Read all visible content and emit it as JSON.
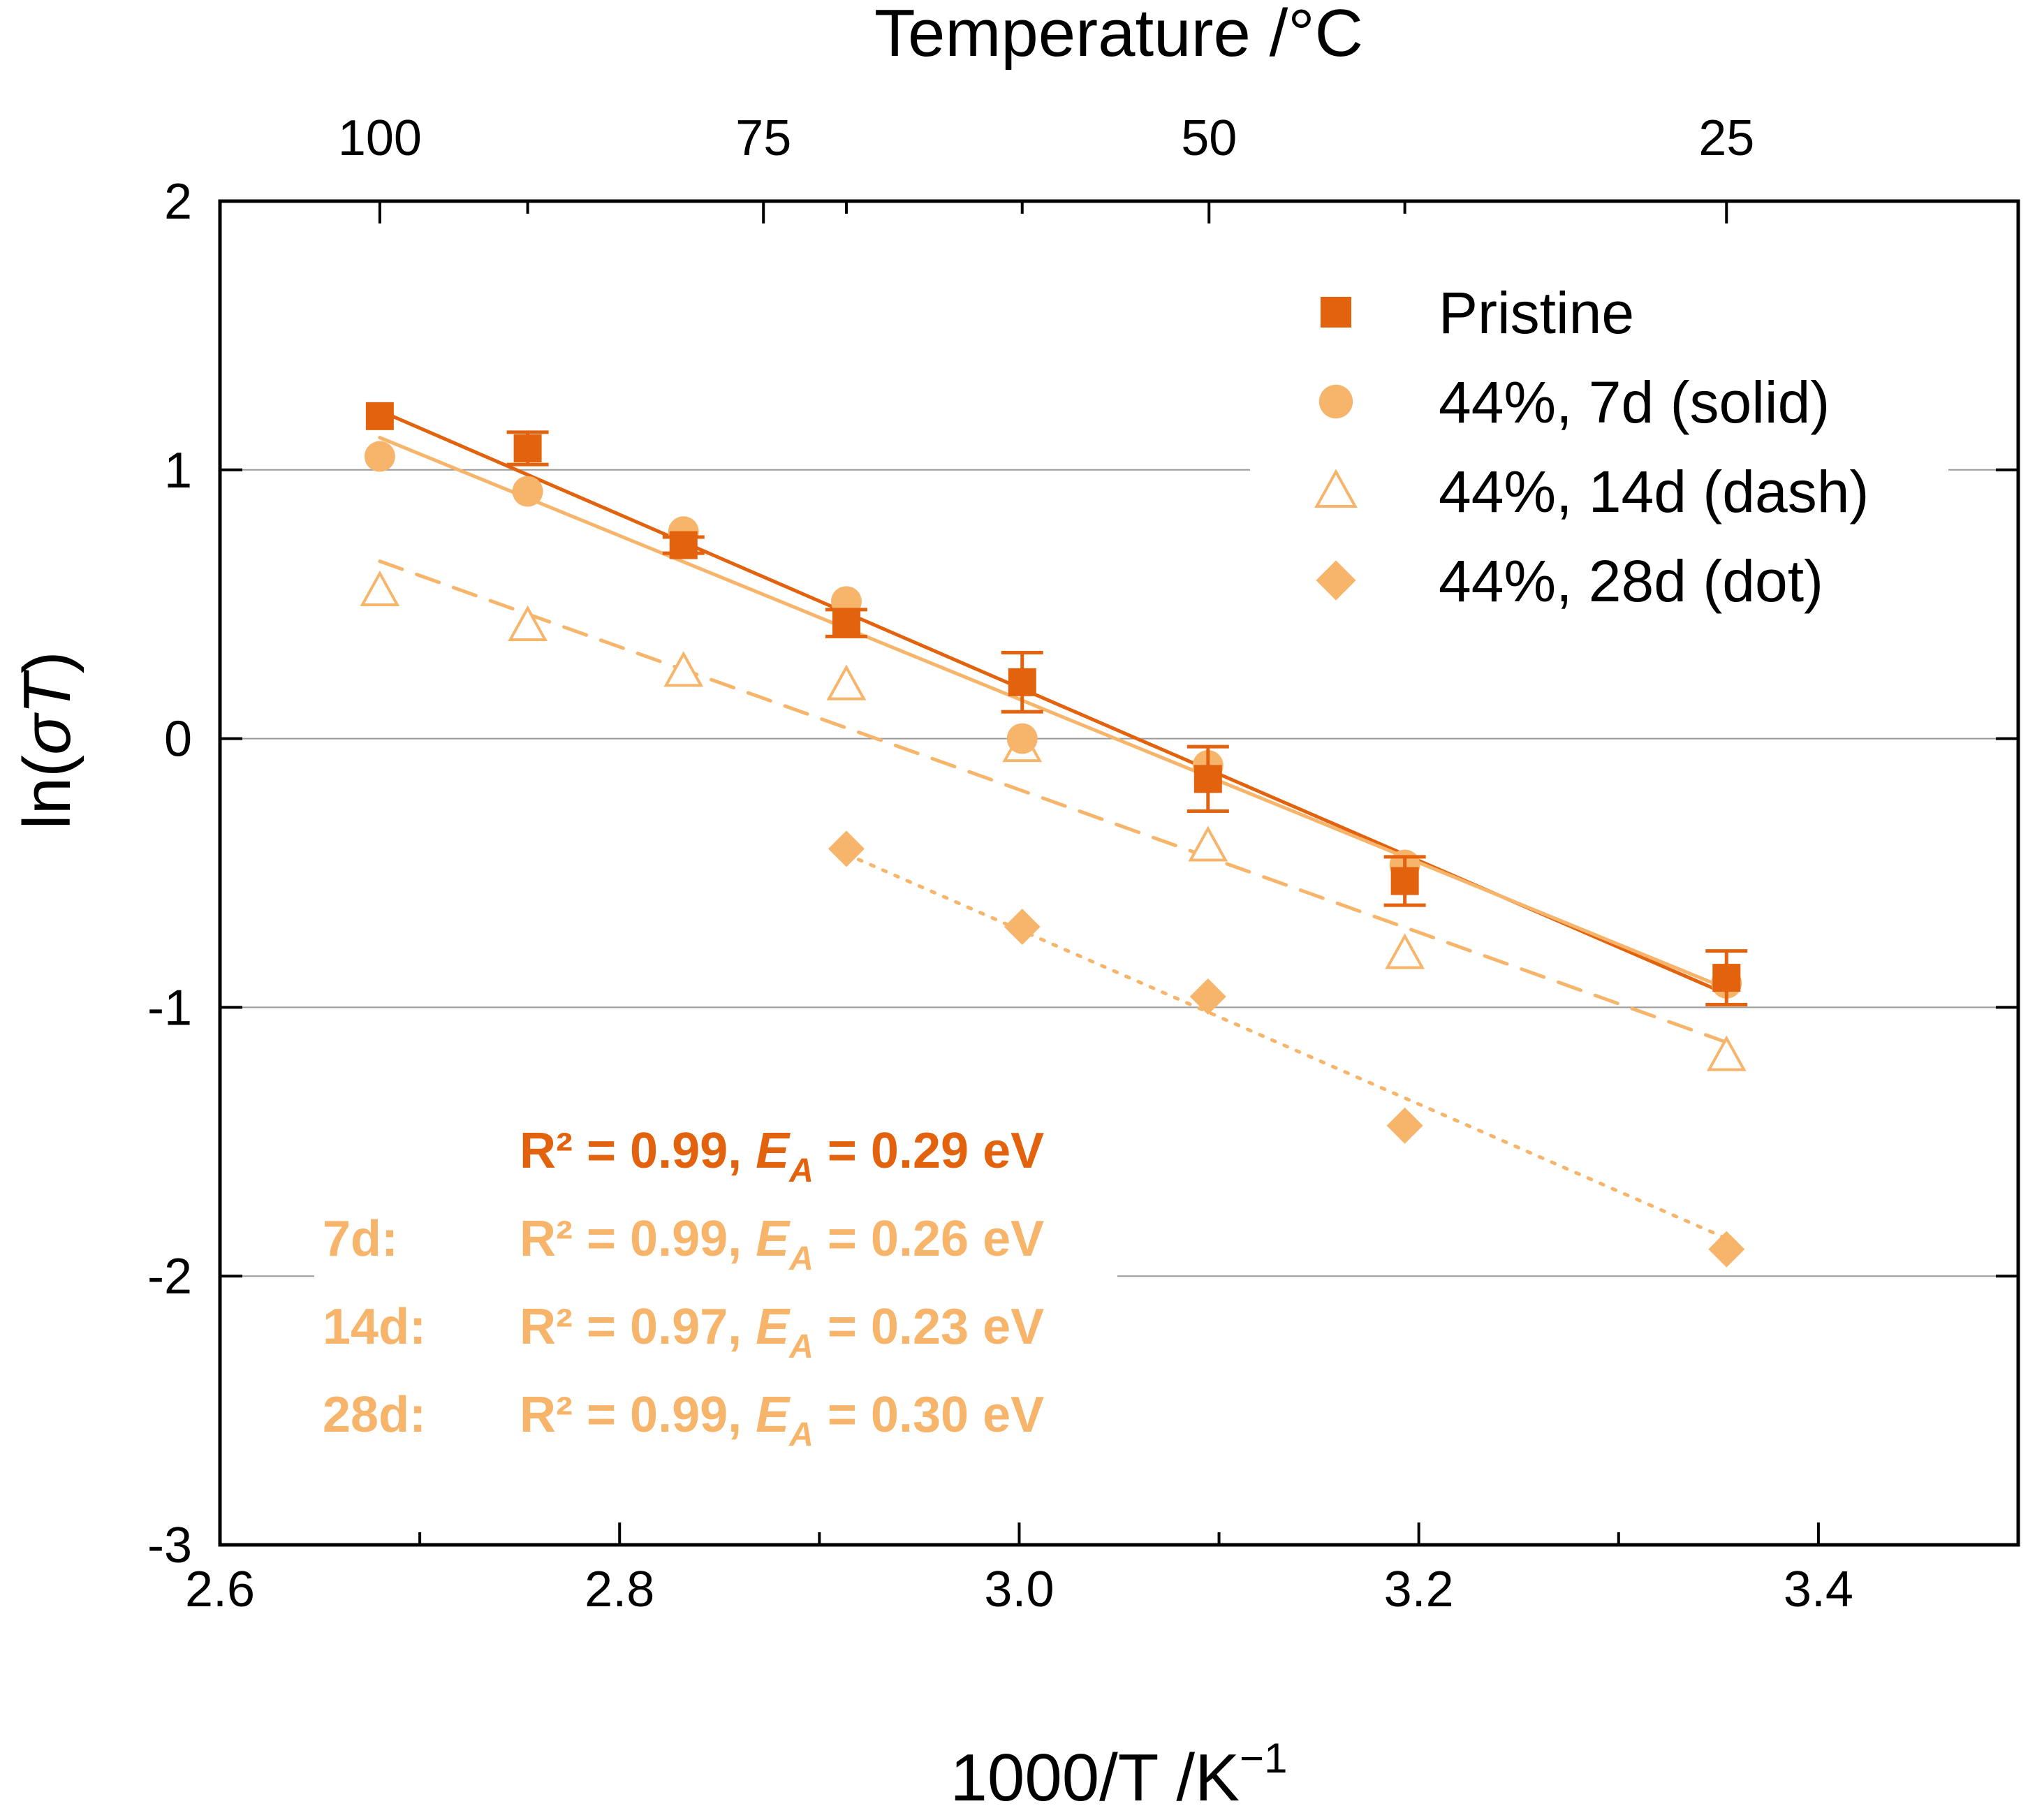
{
  "colors": {
    "pristine": "#e2620d",
    "aged": "#f7b56b",
    "grid": "#9a9a9a",
    "axis": "#000000"
  },
  "chart_data": {
    "type": "scatter",
    "xlabel_main": "1000/T /K",
    "xlabel_sup": "−1",
    "ylabel_pre": "ln(",
    "ylabel_sigma": "σ",
    "ylabel_T": "T",
    "ylabel_post": ")",
    "top_axis_label": "Temperature /°C",
    "xlim": [
      2.6,
      3.5
    ],
    "ylim": [
      -3,
      2
    ],
    "x_ticks": [
      {
        "value": 2.6,
        "label": "2.6"
      },
      {
        "value": 2.8,
        "label": "2.8"
      },
      {
        "value": 3.0,
        "label": "3.0"
      },
      {
        "value": 3.2,
        "label": "3.2"
      },
      {
        "value": 3.4,
        "label": "3.4"
      }
    ],
    "x_minor_ticks": [
      2.7,
      2.9,
      3.1,
      3.3
    ],
    "y_ticks": [
      {
        "value": 2,
        "label": "2"
      },
      {
        "value": 1,
        "label": "1"
      },
      {
        "value": 0,
        "label": "0"
      },
      {
        "value": -1,
        "label": "-1"
      },
      {
        "value": -2,
        "label": "-2"
      },
      {
        "value": -3,
        "label": "-3"
      }
    ],
    "grid_y": [
      1,
      0,
      -1,
      -2
    ],
    "top_ticks": [
      {
        "value": 2.68,
        "label": "100"
      },
      {
        "value": 2.872,
        "label": "75"
      },
      {
        "value": 3.095,
        "label": "50"
      },
      {
        "value": 3.354,
        "label": "25"
      }
    ],
    "top_minor_ticks": [
      2.754,
      2.9135,
      3.0015,
      3.193
    ],
    "series": [
      {
        "name": "Pristine",
        "marker": "square",
        "filled": true,
        "color_key": "pristine",
        "line": "solid",
        "x": [
          2.68,
          2.754,
          2.832,
          2.9135,
          3.0015,
          3.0945,
          3.193,
          3.354
        ],
        "y": [
          1.2,
          1.08,
          0.72,
          0.43,
          0.21,
          -0.15,
          -0.53,
          -0.89
        ],
        "err": [
          0,
          0.06,
          0.03,
          0.05,
          0.11,
          0.12,
          0.09,
          0.1
        ],
        "fit": {
          "x": [
            2.68,
            3.354
          ],
          "y": [
            1.22,
            -0.95
          ]
        }
      },
      {
        "name": "44%, 7d (solid)",
        "marker": "circle",
        "filled": true,
        "color_key": "aged",
        "line": "solid",
        "x": [
          2.68,
          2.754,
          2.832,
          2.9135,
          3.0015,
          3.0945,
          3.193,
          3.354
        ],
        "y": [
          1.05,
          0.92,
          0.77,
          0.51,
          0.0,
          -0.1,
          -0.47,
          -0.91
        ],
        "fit": {
          "x": [
            2.68,
            3.354
          ],
          "y": [
            1.12,
            -0.93
          ]
        }
      },
      {
        "name": "44%, 14d (dash)",
        "marker": "triangle",
        "filled": false,
        "color_key": "aged",
        "line": "dash",
        "x": [
          2.68,
          2.754,
          2.832,
          2.9135,
          3.0015,
          3.0945,
          3.193,
          3.354
        ],
        "y": [
          0.55,
          0.42,
          0.25,
          0.2,
          -0.03,
          -0.4,
          -0.8,
          -1.18
        ],
        "fit": {
          "x": [
            2.68,
            3.354
          ],
          "y": [
            0.66,
            -1.13
          ]
        }
      },
      {
        "name": "44%, 28d (dot)",
        "marker": "diamond",
        "filled": true,
        "color_key": "aged",
        "line": "dot",
        "x": [
          2.9135,
          3.0015,
          3.0945,
          3.193,
          3.354
        ],
        "y": [
          -0.41,
          -0.7,
          -0.96,
          -1.44,
          -1.9
        ],
        "fit": {
          "x": [
            2.9135,
            3.354
          ],
          "y": [
            -0.43,
            -1.86
          ]
        }
      }
    ],
    "annotations": [
      {
        "prefix": "",
        "r2": "R² = 0.99, ",
        "ea_sym": "E",
        "ea_sub": "A",
        "ea_val": " = 0.29 eV",
        "color_key": "pristine"
      },
      {
        "prefix": "7d:",
        "r2": "R² = 0.99, ",
        "ea_sym": "E",
        "ea_sub": "A",
        "ea_val": " = 0.26 eV",
        "color_key": "aged"
      },
      {
        "prefix": "14d:",
        "r2": "R² = 0.97, ",
        "ea_sym": "E",
        "ea_sub": "A",
        "ea_val": " = 0.23 eV",
        "color_key": "aged"
      },
      {
        "prefix": "28d:",
        "r2": "R² = 0.99, ",
        "ea_sym": "E",
        "ea_sub": "A",
        "ea_val": " = 0.30 eV",
        "color_key": "aged"
      }
    ]
  }
}
